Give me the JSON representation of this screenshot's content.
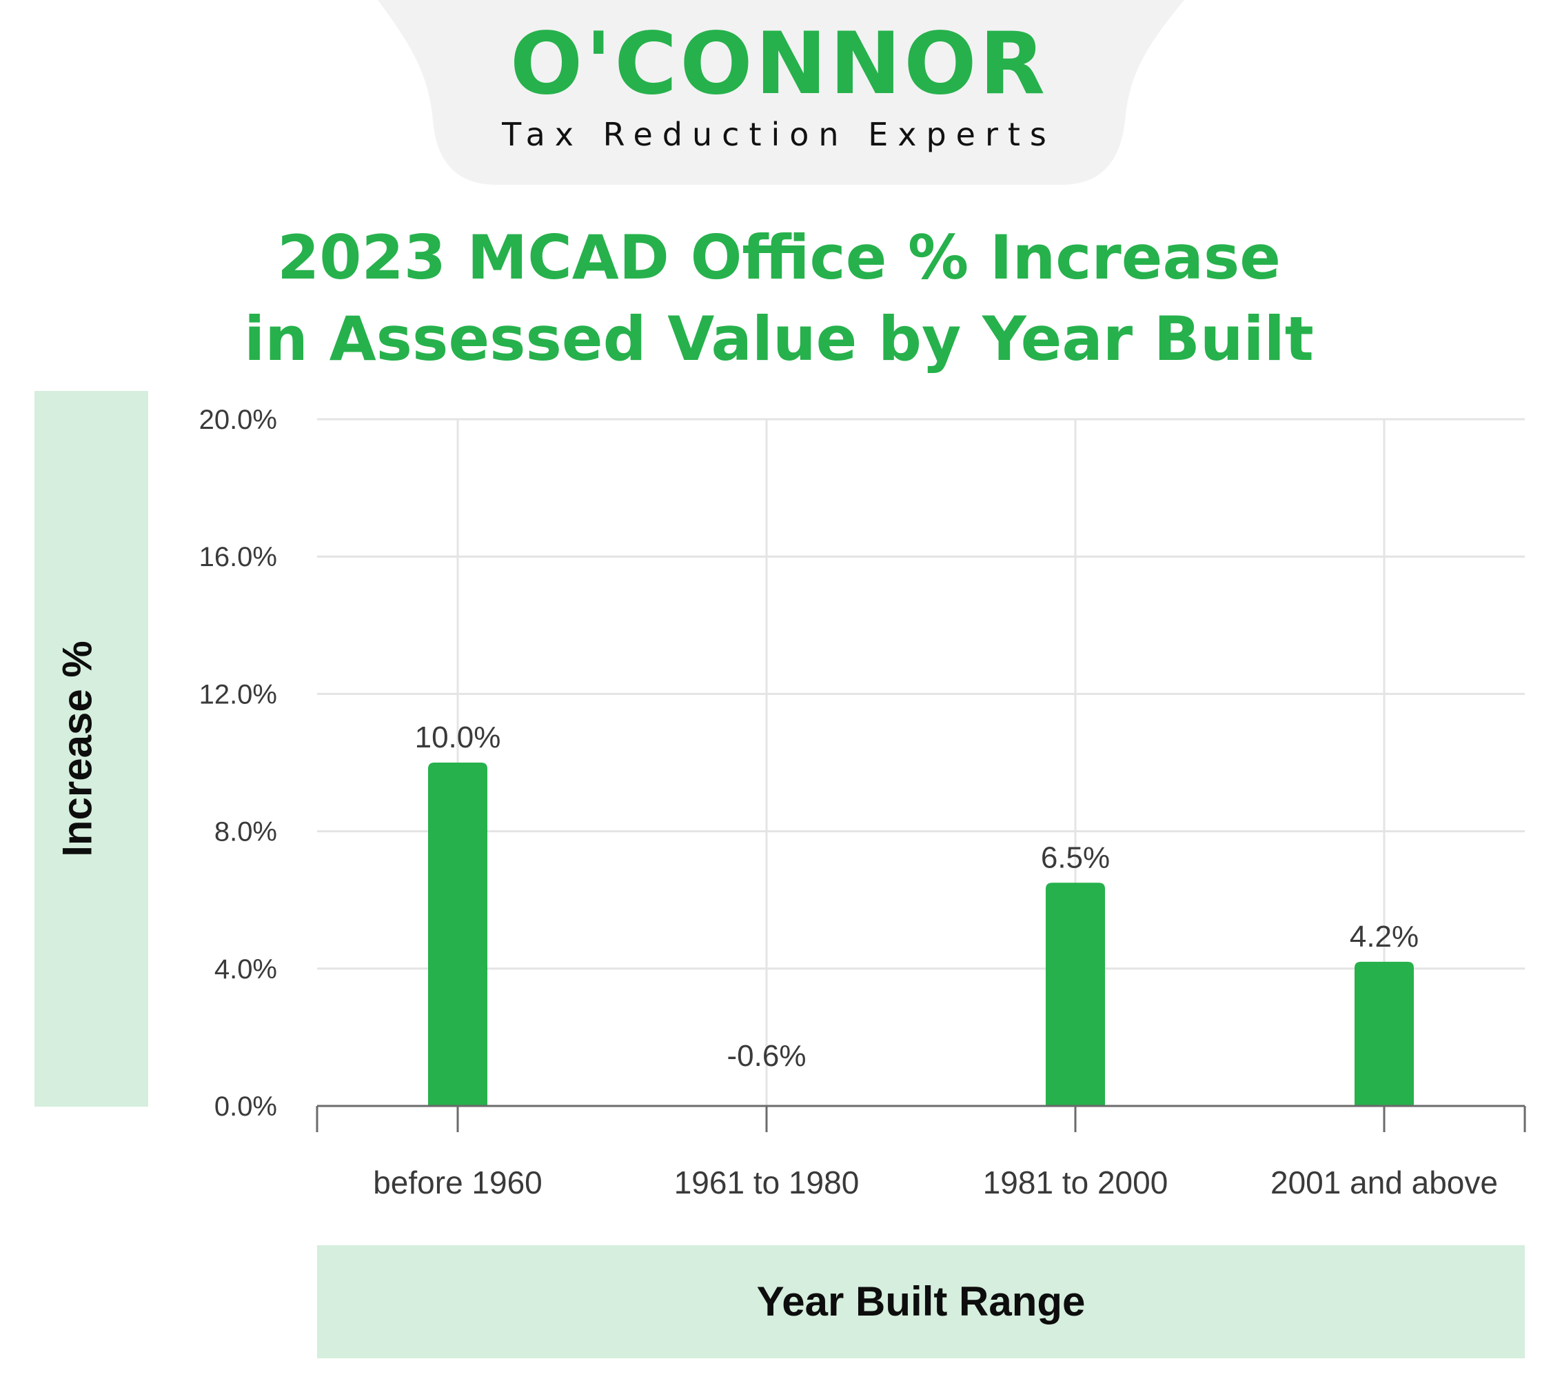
{
  "brand": {
    "logo": "O'CONNOR",
    "tagline": "Tax Reduction Experts"
  },
  "colors": {
    "brand_green": "#26b14c",
    "panel_green": "#d5eedd",
    "tab_gray": "#f2f2f2",
    "grid": "#e4e4e4",
    "axis": "#6b6b6b"
  },
  "chart_data": {
    "type": "bar",
    "title": "2023 MCAD Office % Increase in Assessed Value by Year Built",
    "title_lines": [
      "2023 MCAD Office % Increase",
      "in Assessed Value by Year Built"
    ],
    "xlabel": "Year Built Range",
    "ylabel": "Increase %",
    "categories": [
      "before 1960",
      "1961 to 1980",
      "1981 to 2000",
      "2001 and above"
    ],
    "values": [
      10.0,
      -0.6,
      6.5,
      4.2
    ],
    "value_labels": [
      "10.0%",
      "-0.6%",
      "6.5%",
      "4.2%"
    ],
    "ylim": [
      0,
      20
    ],
    "yticks": [
      0,
      4,
      8,
      12,
      16,
      20
    ],
    "ytick_labels": [
      "0.0%",
      "4.0%",
      "8.0%",
      "12.0%",
      "16.0%",
      "20.0%"
    ],
    "grid": true,
    "legend": "none"
  }
}
